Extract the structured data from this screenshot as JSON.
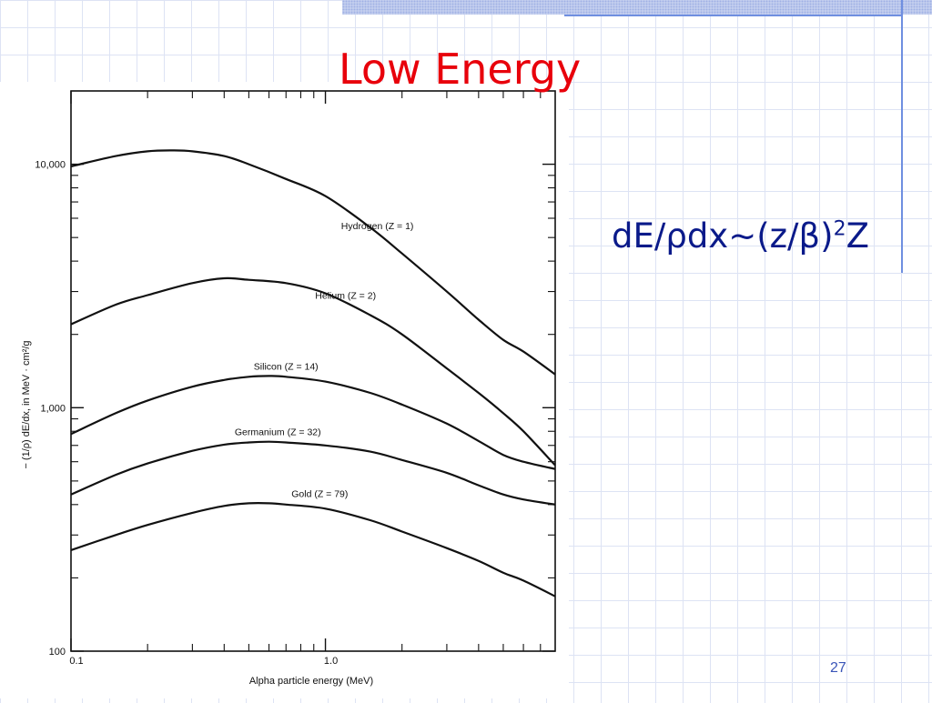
{
  "slide": {
    "title": "Low Energy",
    "formula": {
      "main": "dE/ρdx~(z/β)",
      "superscript": "2",
      "tail": "Z"
    },
    "page_number": "27"
  },
  "chart_data": {
    "type": "line",
    "xscale": "log",
    "yscale": "log",
    "xlim": [
      0.1,
      8
    ],
    "ylim": [
      100,
      20000
    ],
    "xlabel": "Alpha particle energy (MeV)",
    "ylabel": "− (1/ρ) dE/dx, in MeV · cm²/g",
    "x_ticklabels": [
      {
        "value": 0.1,
        "label": "0.1"
      },
      {
        "value": 1.0,
        "label": "1.0"
      }
    ],
    "y_ticklabels": [
      {
        "value": 100,
        "label": "100"
      },
      {
        "value": 1000,
        "label": "1,000"
      },
      {
        "value": 10000,
        "label": "10,000"
      }
    ],
    "x_minor_ticks": [
      0.2,
      0.3,
      0.4,
      0.5,
      0.6,
      0.7,
      0.8,
      0.9,
      2,
      3,
      4,
      5,
      6,
      7
    ],
    "y_minor_ticks": [
      200,
      300,
      400,
      500,
      600,
      700,
      800,
      900,
      2000,
      3000,
      4000,
      5000,
      6000,
      7000,
      8000,
      9000
    ],
    "grid": false,
    "series": [
      {
        "name": "Hydrogen (Z = 1)",
        "label_at": [
          1.6,
          5400
        ],
        "x": [
          0.1,
          0.15,
          0.2,
          0.25,
          0.3,
          0.4,
          0.5,
          0.7,
          1.0,
          1.5,
          2.0,
          3.0,
          4.0,
          5.0,
          6.0,
          8.0
        ],
        "y": [
          9800,
          10800,
          11300,
          11400,
          11300,
          10800,
          10000,
          8700,
          7400,
          5500,
          4300,
          3000,
          2300,
          1900,
          1700,
          1370
        ]
      },
      {
        "name": "Helium (Z = 2)",
        "label_at": [
          1.2,
          2800
        ],
        "x": [
          0.1,
          0.15,
          0.2,
          0.3,
          0.4,
          0.5,
          0.7,
          1.0,
          1.5,
          2.0,
          3.0,
          4.0,
          5.0,
          6.0,
          8.0
        ],
        "y": [
          2200,
          2650,
          2900,
          3250,
          3400,
          3350,
          3250,
          2950,
          2400,
          2000,
          1450,
          1150,
          950,
          800,
          580
        ]
      },
      {
        "name": "Silicon (Z = 14)",
        "label_at": [
          0.7,
          1430
        ],
        "x": [
          0.1,
          0.15,
          0.2,
          0.3,
          0.4,
          0.5,
          0.6,
          0.7,
          1.0,
          1.5,
          2.0,
          3.0,
          4.0,
          5.0,
          6.0,
          8.0
        ],
        "y": [
          780,
          950,
          1070,
          1220,
          1300,
          1340,
          1350,
          1340,
          1280,
          1150,
          1030,
          860,
          730,
          640,
          600,
          560
        ]
      },
      {
        "name": "Germanium (Z = 32)",
        "label_at": [
          0.65,
          770
        ],
        "x": [
          0.1,
          0.15,
          0.2,
          0.3,
          0.4,
          0.5,
          0.6,
          0.7,
          1.0,
          1.5,
          2.0,
          3.0,
          4.0,
          5.0,
          6.0,
          8.0
        ],
        "y": [
          440,
          530,
          590,
          665,
          705,
          720,
          725,
          720,
          700,
          660,
          610,
          540,
          480,
          440,
          420,
          400
        ]
      },
      {
        "name": "Gold (Z = 79)",
        "label_at": [
          0.95,
          430
        ],
        "x": [
          0.1,
          0.15,
          0.2,
          0.3,
          0.4,
          0.5,
          0.6,
          0.7,
          1.0,
          1.5,
          2.0,
          3.0,
          4.0,
          5.0,
          6.0,
          8.0
        ],
        "y": [
          260,
          300,
          330,
          370,
          395,
          405,
          405,
          400,
          385,
          345,
          310,
          265,
          235,
          210,
          195,
          168
        ]
      }
    ]
  }
}
